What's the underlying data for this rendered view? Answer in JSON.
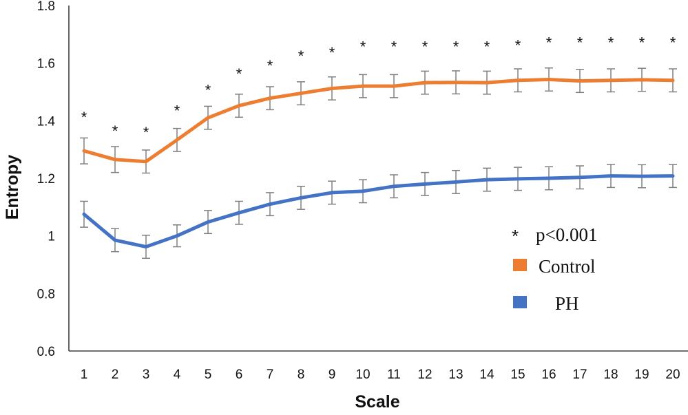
{
  "chart_data": {
    "type": "line",
    "title": "",
    "xlabel": "Scale",
    "ylabel": "Entropy",
    "x": [
      1,
      2,
      3,
      4,
      5,
      6,
      7,
      8,
      9,
      10,
      11,
      12,
      13,
      14,
      15,
      16,
      17,
      18,
      19,
      20
    ],
    "x_tick_labels": [
      "1",
      "2",
      "3",
      "4",
      "5",
      "6",
      "7",
      "8",
      "9",
      "10",
      "11",
      "12",
      "13",
      "14",
      "15",
      "16",
      "17",
      "18",
      "19",
      "20"
    ],
    "ylim": [
      0.6,
      1.8
    ],
    "y_ticks": [
      0.6,
      0.8,
      1.0,
      1.2,
      1.4,
      1.6,
      1.8
    ],
    "y_tick_labels": [
      "0.6",
      "0.8",
      "1",
      "1.2",
      "1.4",
      "1.6",
      "1.8"
    ],
    "grid": false,
    "series": [
      {
        "name": "Control",
        "color": "#ED7D31",
        "values": [
          1.295,
          1.265,
          1.258,
          1.333,
          1.41,
          1.452,
          1.478,
          1.495,
          1.512,
          1.52,
          1.52,
          1.532,
          1.533,
          1.532,
          1.54,
          1.543,
          1.538,
          1.54,
          1.542,
          1.54
        ],
        "error": [
          0.045,
          0.045,
          0.04,
          0.04,
          0.04,
          0.04,
          0.04,
          0.04,
          0.04,
          0.04,
          0.04,
          0.04,
          0.04,
          0.04,
          0.04,
          0.04,
          0.04,
          0.04,
          0.04,
          0.04
        ]
      },
      {
        "name": "PH",
        "color": "#4472C4",
        "values": [
          1.075,
          0.985,
          0.962,
          1.0,
          1.048,
          1.08,
          1.11,
          1.132,
          1.15,
          1.155,
          1.172,
          1.18,
          1.187,
          1.195,
          1.198,
          1.2,
          1.203,
          1.208,
          1.207,
          1.208
        ],
        "error": [
          0.045,
          0.04,
          0.04,
          0.038,
          0.04,
          0.04,
          0.04,
          0.04,
          0.04,
          0.04,
          0.04,
          0.04,
          0.04,
          0.04,
          0.04,
          0.04,
          0.04,
          0.04,
          0.04,
          0.04
        ]
      }
    ],
    "annotations": {
      "significance_symbol": "*",
      "significance_label": "p<0.001",
      "significance_y": [
        1.422,
        1.375,
        1.37,
        1.445,
        1.517,
        1.573,
        1.602,
        1.635,
        1.647,
        1.667,
        1.667,
        1.667,
        1.667,
        1.667,
        1.672,
        1.682,
        1.682,
        1.682,
        1.682,
        1.682
      ]
    },
    "legend": {
      "placement": "center-right",
      "entries": [
        "p<0.001",
        "Control",
        "PH"
      ]
    },
    "error_bar_color": "#808080"
  }
}
